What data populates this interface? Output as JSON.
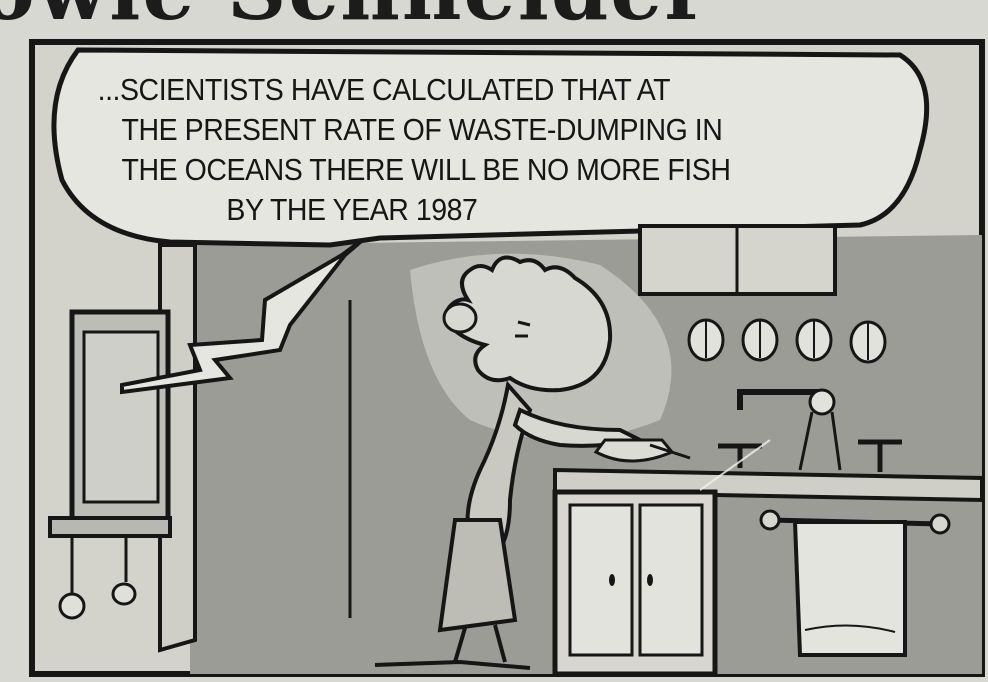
{
  "masthead": {
    "text": "owie Schneider"
  },
  "speech_bubble": {
    "lines": [
      "...SCIENTISTS HAVE CALCULATED THAT AT",
      "THE PRESENT RATE OF WASTE-DUMPING IN",
      "THE OCEANS THERE WILL BE NO MORE FISH",
      "BY THE YEAR 1987"
    ]
  },
  "colors": {
    "paper": "#d8d8d2",
    "ink": "#161616",
    "wall_shade": "#9a9a96",
    "light_fill": "#e6e6e0"
  }
}
